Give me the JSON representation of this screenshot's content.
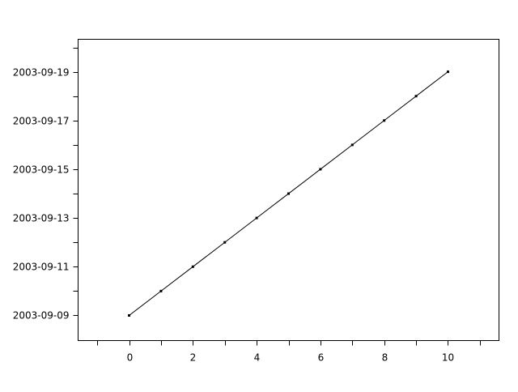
{
  "chart_data": {
    "type": "line",
    "title": "",
    "xlabel": "",
    "ylabel": "",
    "x": [
      0,
      1,
      2,
      3,
      4,
      5,
      6,
      7,
      8,
      9,
      10
    ],
    "series": [
      {
        "values": [
          "2003-09-09",
          "2003-09-10",
          "2003-09-11",
          "2003-09-12",
          "2003-09-13",
          "2003-09-14",
          "2003-09-15",
          "2003-09-16",
          "2003-09-17",
          "2003-09-18",
          "2003-09-19"
        ],
        "color": "#000000",
        "marker": "point"
      }
    ],
    "xlim": [
      -1.6,
      11.6
    ],
    "ylim": [
      "2003-09-07 23:15",
      "2003-09-20 08:00"
    ],
    "xticks": [
      "0",
      "2",
      "4",
      "6",
      "8",
      "10"
    ],
    "xminor_ticks": [
      -1,
      1,
      3,
      5,
      7,
      9,
      11
    ],
    "yticks": [
      "2003-09-09",
      "2003-09-11",
      "2003-09-13",
      "2003-09-15",
      "2003-09-17",
      "2003-09-19"
    ],
    "yminor_ticks": [
      "2003-09-08",
      "2003-09-10",
      "2003-09-12",
      "2003-09-14",
      "2003-09-16",
      "2003-09-18",
      "2003-09-20"
    ],
    "grid": false,
    "legend": "none"
  }
}
